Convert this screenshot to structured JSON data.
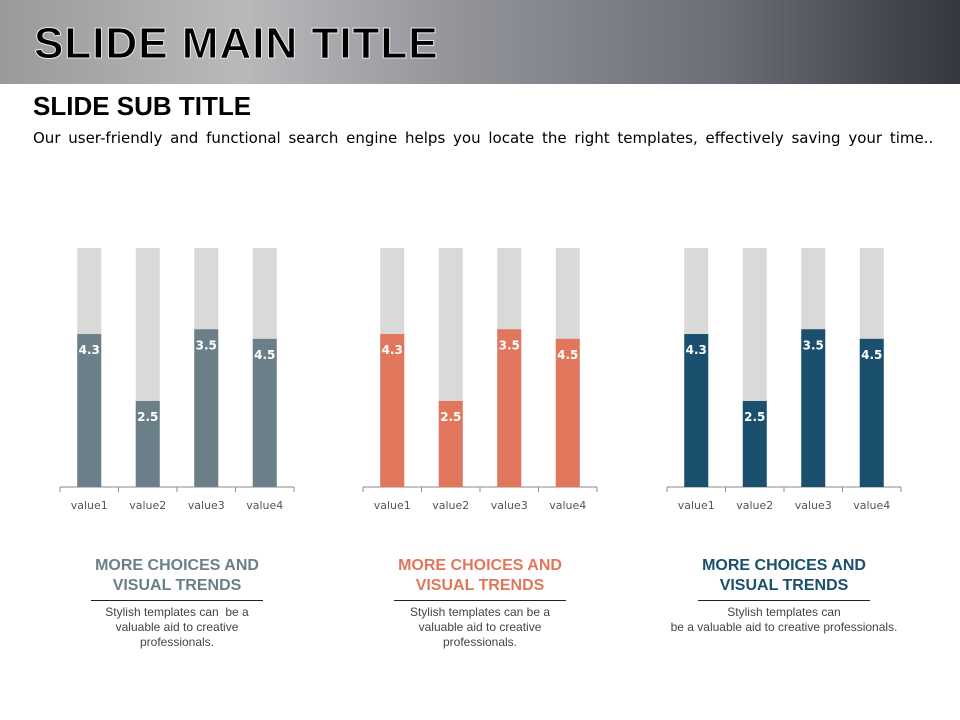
{
  "header": {
    "title": "SLIDE MAIN TITLE"
  },
  "subtitle": "SLIDE SUB TITLE",
  "description": "Our user-friendly and functional search engine helps you locate the right templates, effectively saving your time..",
  "chart_data": [
    {
      "type": "bar",
      "categories": [
        "value1",
        "value2",
        "value3",
        "value4"
      ],
      "values": [
        4.3,
        2.5,
        3.5,
        4.5
      ],
      "fill_percent": [
        64,
        36,
        66,
        62
      ],
      "color": "#6b7f89",
      "background_color": "#d9d9d9",
      "grid": false
    },
    {
      "type": "bar",
      "categories": [
        "value1",
        "value2",
        "value3",
        "value4"
      ],
      "values": [
        4.3,
        2.5,
        3.5,
        4.5
      ],
      "fill_percent": [
        64,
        36,
        66,
        62
      ],
      "color": "#e0775c",
      "background_color": "#d9d9d9",
      "grid": false
    },
    {
      "type": "bar",
      "categories": [
        "value1",
        "value2",
        "value3",
        "value4"
      ],
      "values": [
        4.3,
        2.5,
        3.5,
        4.5
      ],
      "fill_percent": [
        64,
        36,
        66,
        62
      ],
      "color": "#1a4f6e",
      "background_color": "#d9d9d9",
      "grid": false
    }
  ],
  "captions": [
    {
      "title_lines": [
        "MORE CHOICES AND",
        "VISUAL TRENDS"
      ],
      "text_lines": [
        "Stylish templates can  be a",
        "valuable aid to creative",
        "professionals."
      ],
      "color": "#6b7f89"
    },
    {
      "title_lines": [
        "MORE CHOICES AND",
        "VISUAL TRENDS"
      ],
      "text_lines": [
        "Stylish templates can be a",
        "valuable aid to creative",
        "professionals."
      ],
      "color": "#e0775c"
    },
    {
      "title_lines": [
        "MORE CHOICES AND",
        "VISUAL TRENDS"
      ],
      "text_lines": [
        "Stylish templates can",
        "be a valuable aid to creative professionals."
      ],
      "color": "#1a4f6e"
    }
  ]
}
